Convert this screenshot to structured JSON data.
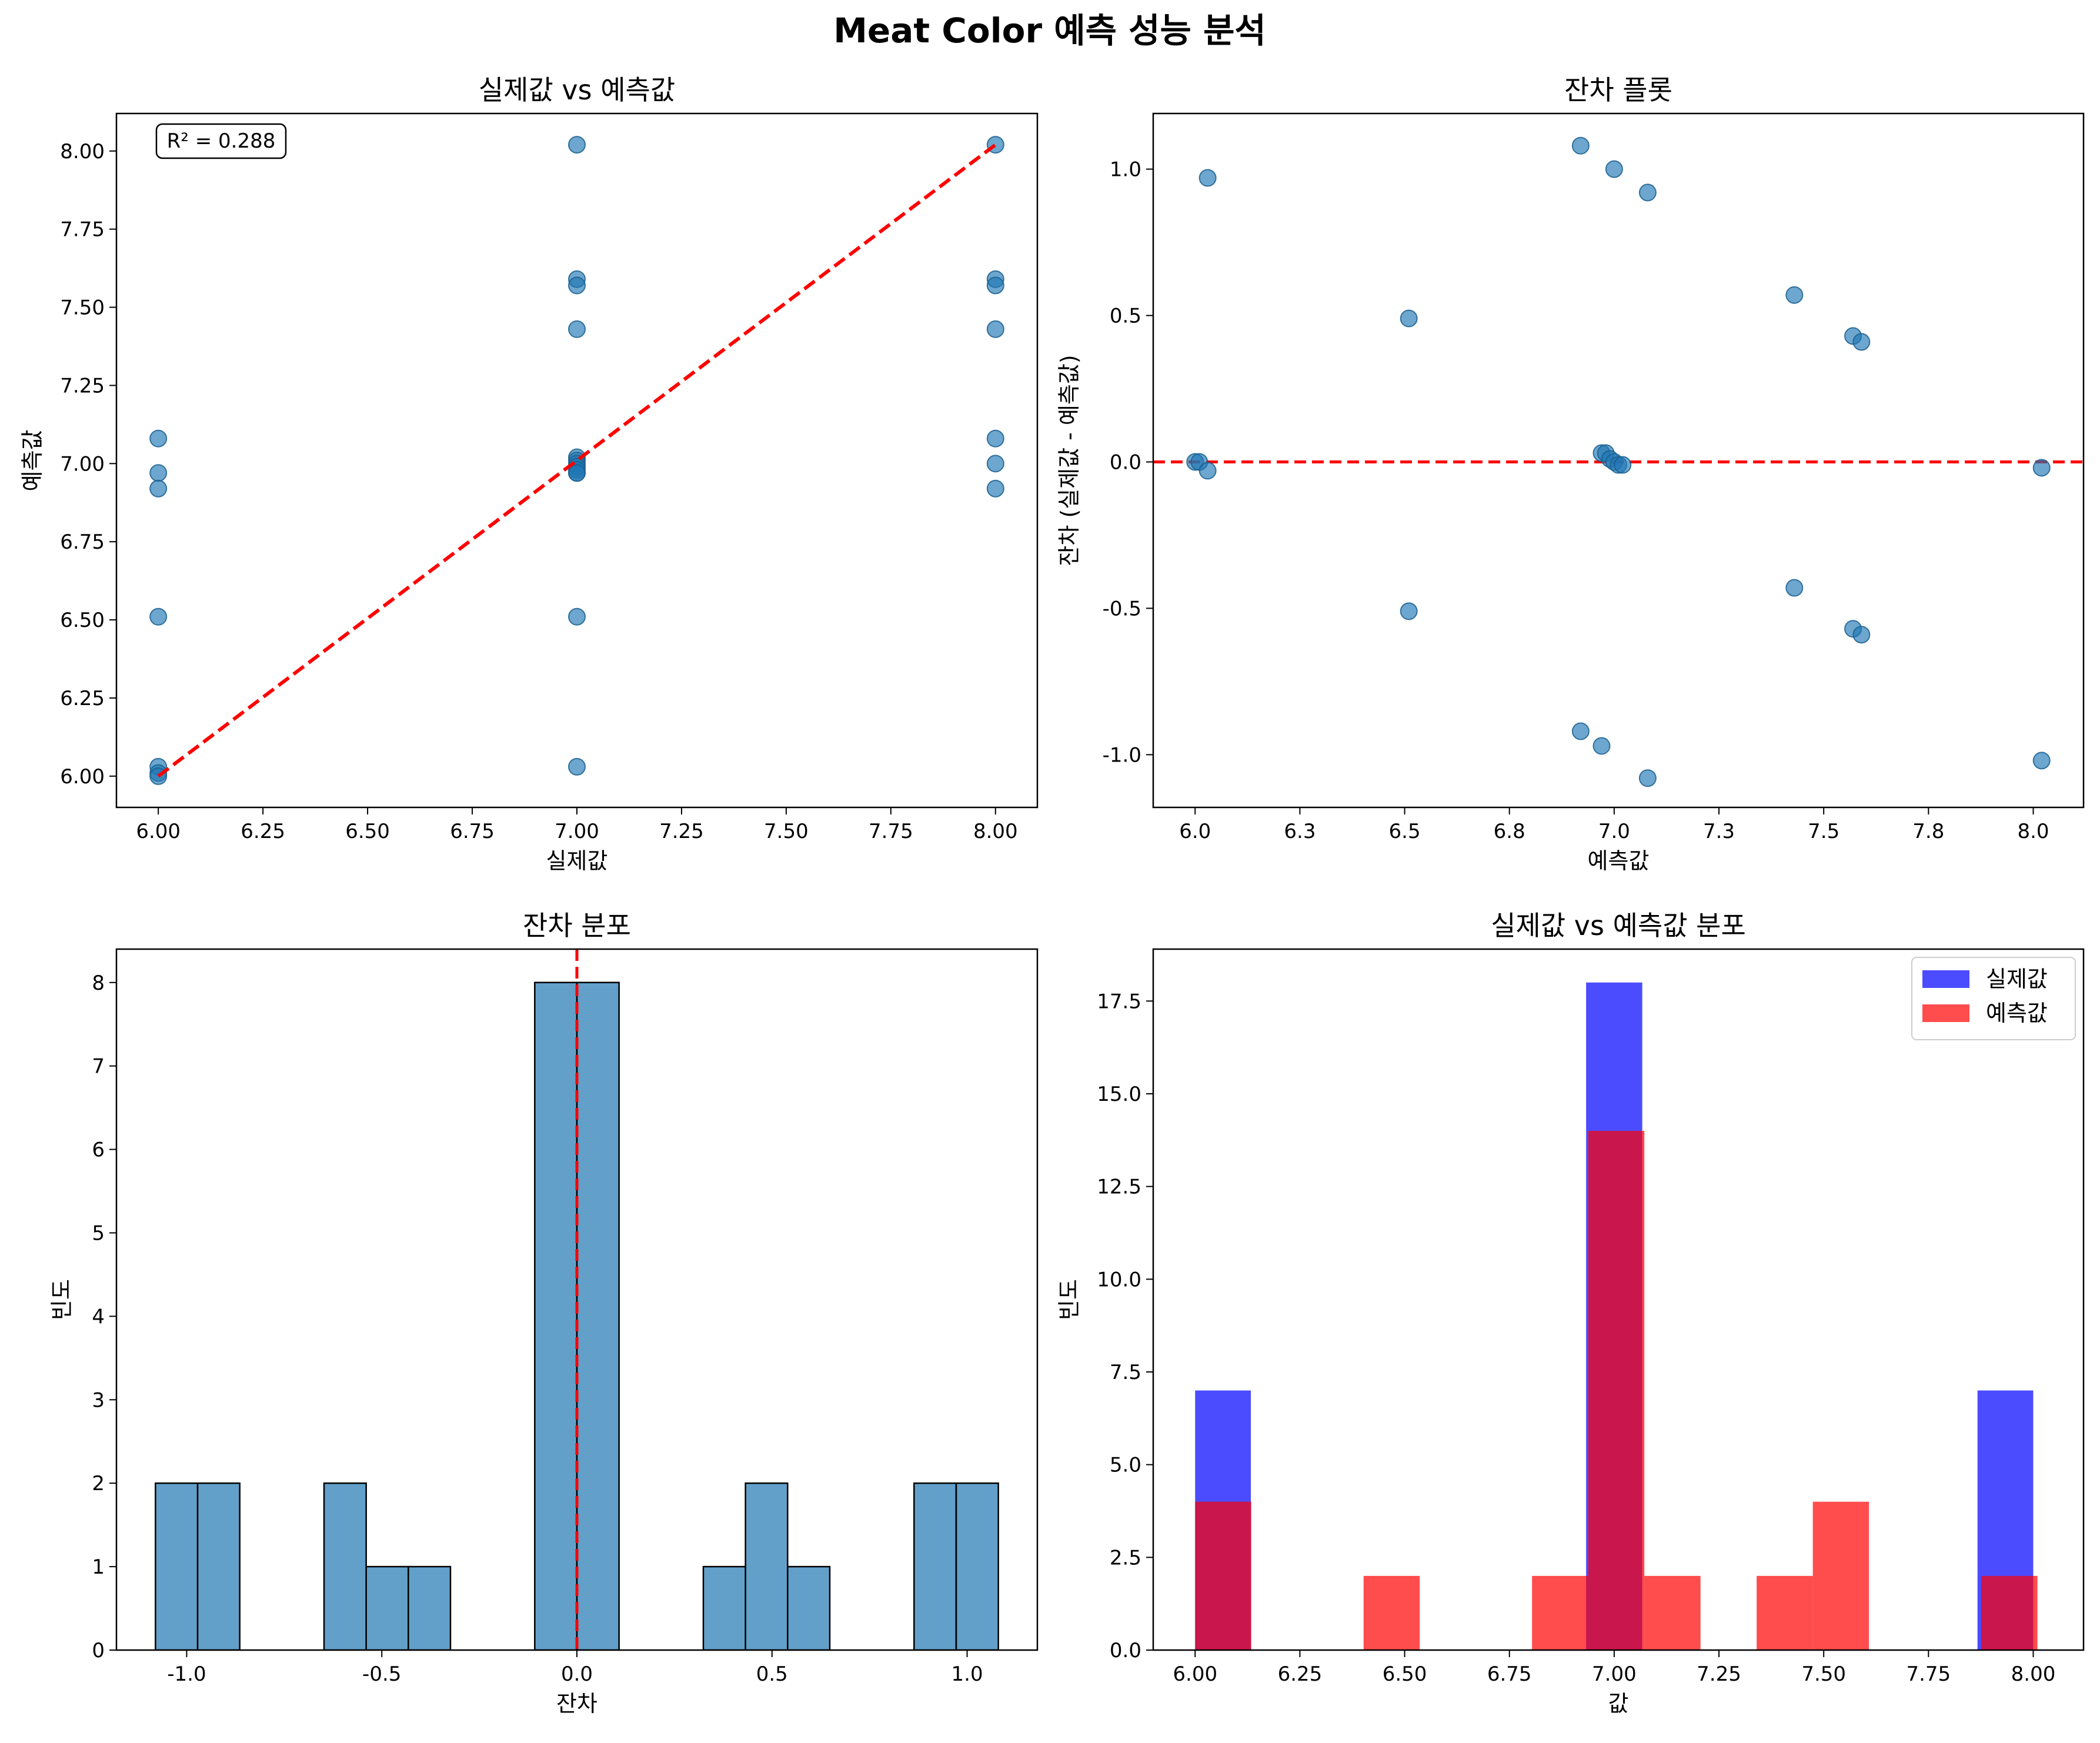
{
  "suptitle": "Meat Color 예측 성능 분석",
  "colors": {
    "scatter": "#1f77b4",
    "refline": "#ff0000",
    "hist_residual": "#1f77b4",
    "actual": "#0000ff",
    "predicted": "#ff0000"
  },
  "chart_data": [
    {
      "id": "actual-vs-predicted",
      "type": "scatter",
      "title": "실제값 vs 예측값",
      "xlabel": "실제값",
      "ylabel": "예측값",
      "xlim": [
        5.9,
        8.1
      ],
      "ylim": [
        5.9,
        8.12
      ],
      "xticks": [
        6.0,
        6.25,
        6.5,
        6.75,
        7.0,
        7.25,
        7.5,
        7.75,
        8.0
      ],
      "yticks": [
        6.0,
        6.25,
        6.5,
        6.75,
        7.0,
        7.25,
        7.5,
        7.75,
        8.0
      ],
      "tick_format": "2dp",
      "annotation": "R² = 0.288",
      "reference_line": {
        "from": [
          6.0,
          6.0
        ],
        "to": [
          8.0,
          8.02
        ],
        "style": "dashed"
      },
      "points": [
        [
          6.0,
          7.08
        ],
        [
          6.0,
          6.97
        ],
        [
          6.0,
          6.92
        ],
        [
          6.0,
          6.51
        ],
        [
          6.0,
          6.03
        ],
        [
          6.0,
          6.01
        ],
        [
          6.0,
          6.0
        ],
        [
          7.0,
          8.02
        ],
        [
          7.0,
          7.59
        ],
        [
          7.0,
          7.57
        ],
        [
          7.0,
          7.43
        ],
        [
          7.0,
          7.02
        ],
        [
          7.0,
          7.01
        ],
        [
          7.0,
          7.0
        ],
        [
          7.0,
          6.99
        ],
        [
          7.0,
          6.98
        ],
        [
          7.0,
          6.97
        ],
        [
          7.0,
          6.97
        ],
        [
          7.0,
          6.51
        ],
        [
          7.0,
          6.03
        ],
        [
          8.0,
          8.02
        ],
        [
          8.0,
          7.59
        ],
        [
          8.0,
          7.57
        ],
        [
          8.0,
          7.43
        ],
        [
          8.0,
          7.08
        ],
        [
          8.0,
          7.0
        ],
        [
          8.0,
          6.92
        ]
      ]
    },
    {
      "id": "residual-plot",
      "type": "scatter",
      "title": "잔차 플롯",
      "xlabel": "예측값",
      "ylabel": "잔차 (실제값 - 예측값)",
      "xlim": [
        5.9,
        8.12
      ],
      "ylim": [
        -1.18,
        1.19
      ],
      "xticks": [
        6.0,
        6.25,
        6.5,
        6.75,
        7.0,
        7.25,
        7.5,
        7.75,
        8.0
      ],
      "yticks": [
        -1.0,
        -0.5,
        0.0,
        0.5,
        1.0
      ],
      "tick_format": "1dp",
      "reference_hline": 0,
      "points": [
        [
          6.03,
          0.97
        ],
        [
          6.0,
          0.0
        ],
        [
          6.01,
          0.0
        ],
        [
          6.03,
          -0.03
        ],
        [
          6.51,
          0.49
        ],
        [
          6.51,
          -0.51
        ],
        [
          6.92,
          1.08
        ],
        [
          7.0,
          1.0
        ],
        [
          7.08,
          0.92
        ],
        [
          6.97,
          0.03
        ],
        [
          6.98,
          0.03
        ],
        [
          6.99,
          0.01
        ],
        [
          7.0,
          0.0
        ],
        [
          7.01,
          -0.01
        ],
        [
          7.02,
          -0.01
        ],
        [
          6.92,
          -0.92
        ],
        [
          6.97,
          -0.97
        ],
        [
          7.08,
          -1.08
        ],
        [
          7.43,
          0.57
        ],
        [
          7.57,
          0.43
        ],
        [
          7.59,
          0.41
        ],
        [
          7.43,
          -0.43
        ],
        [
          7.57,
          -0.57
        ],
        [
          7.59,
          -0.59
        ],
        [
          8.02,
          -0.02
        ],
        [
          8.02,
          -1.02
        ]
      ]
    },
    {
      "id": "residual-distribution",
      "type": "bar",
      "title": "잔차 분포",
      "xlabel": "잔차",
      "ylabel": "빈도",
      "xlim": [
        -1.18,
        1.18
      ],
      "ylim": [
        0,
        8.4
      ],
      "xticks": [
        -1.0,
        -0.5,
        0.0,
        0.5,
        1.0
      ],
      "yticks": [
        0,
        1,
        2,
        3,
        4,
        5,
        6,
        7,
        8
      ],
      "tick_format": "mixed",
      "reference_vline": 0,
      "bin_edges": [
        -1.08,
        -0.972,
        -0.864,
        -0.756,
        -0.648,
        -0.54,
        -0.432,
        -0.324,
        -0.216,
        -0.108,
        0.0,
        0.108,
        0.216,
        0.324,
        0.432,
        0.54,
        0.648,
        0.756,
        0.864,
        0.972,
        1.08
      ],
      "counts": [
        2,
        2,
        0,
        0,
        2,
        1,
        1,
        0,
        0,
        8,
        8,
        0,
        0,
        1,
        2,
        1,
        0,
        0,
        2,
        2
      ]
    },
    {
      "id": "value-distribution",
      "type": "bar",
      "title": "실제값 vs 예측값 분포",
      "xlabel": "값",
      "ylabel": "빈도",
      "xlim": [
        5.9,
        8.12
      ],
      "ylim": [
        0,
        18.9
      ],
      "xticks": [
        6.0,
        6.25,
        6.5,
        6.75,
        7.0,
        7.25,
        7.5,
        7.75,
        8.0
      ],
      "yticks": [
        0.0,
        2.5,
        5.0,
        7.5,
        10.0,
        12.5,
        15.0,
        17.5
      ],
      "tick_format": "2dp-x-1dp-y",
      "legend": "top-right",
      "series": [
        {
          "name": "실제값",
          "color_key": "actual",
          "bins": [
            {
              "x0": 6.0,
              "x1": 6.133,
              "count": 7
            },
            {
              "x0": 6.933,
              "x1": 7.067,
              "count": 18
            },
            {
              "x0": 7.867,
              "x1": 8.0,
              "count": 7
            }
          ]
        },
        {
          "name": "예측값",
          "color_key": "predicted",
          "bins": [
            {
              "x0": 6.0,
              "x1": 6.134,
              "count": 4
            },
            {
              "x0": 6.134,
              "x1": 6.268,
              "count": 0
            },
            {
              "x0": 6.402,
              "x1": 6.536,
              "count": 2
            },
            {
              "x0": 6.804,
              "x1": 6.938,
              "count": 2
            },
            {
              "x0": 6.938,
              "x1": 7.072,
              "count": 14
            },
            {
              "x0": 7.072,
              "x1": 7.206,
              "count": 2
            },
            {
              "x0": 7.34,
              "x1": 7.474,
              "count": 2
            },
            {
              "x0": 7.474,
              "x1": 7.608,
              "count": 4
            },
            {
              "x0": 7.876,
              "x1": 8.01,
              "count": 2
            }
          ]
        }
      ]
    }
  ]
}
